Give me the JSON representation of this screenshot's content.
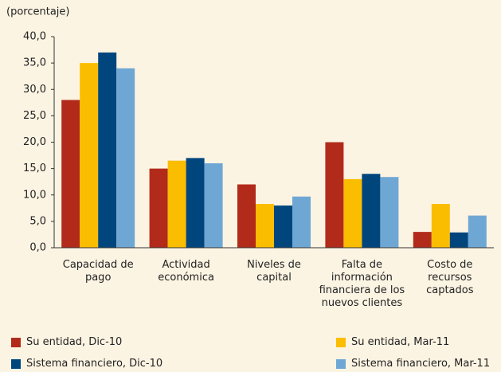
{
  "chart_data": {
    "type": "bar",
    "subtitle": "(porcentaje)",
    "categories": [
      "Capacidad de pago",
      "Actividad económica",
      "Niveles de capital",
      "Falta de información financiera de los nuevos clientes",
      "Costo de recursos captados"
    ],
    "series": [
      {
        "name": "Su entidad, Dic-10",
        "color": "#b22a1a",
        "values": [
          28,
          15,
          12,
          20,
          3
        ]
      },
      {
        "name": "Su entidad, Mar-11",
        "color": "#fbbd00",
        "values": [
          35,
          16.5,
          8.3,
          13,
          8.3
        ]
      },
      {
        "name": "Sistema financiero, Dic-10",
        "color": "#00467d",
        "values": [
          37,
          17,
          8,
          14,
          2.9
        ]
      },
      {
        "name": "Sistema financiero, Mar-11",
        "color": "#6fa7d4",
        "values": [
          34,
          16,
          9.7,
          13.4,
          6.1
        ]
      }
    ],
    "ylim": [
      0,
      40
    ],
    "yticks": [
      {
        "value": 0,
        "label": "0,0"
      },
      {
        "value": 5,
        "label": "5,0"
      },
      {
        "value": 10,
        "label": "10,0"
      },
      {
        "value": 15,
        "label": "15,0"
      },
      {
        "value": 20,
        "label": "20,0"
      },
      {
        "value": 25,
        "label": "25,0"
      },
      {
        "value": 30,
        "label": "30,0"
      },
      {
        "value": 35,
        "label": "35,0"
      },
      {
        "value": 40,
        "label": "40,0"
      }
    ],
    "grid": false
  }
}
